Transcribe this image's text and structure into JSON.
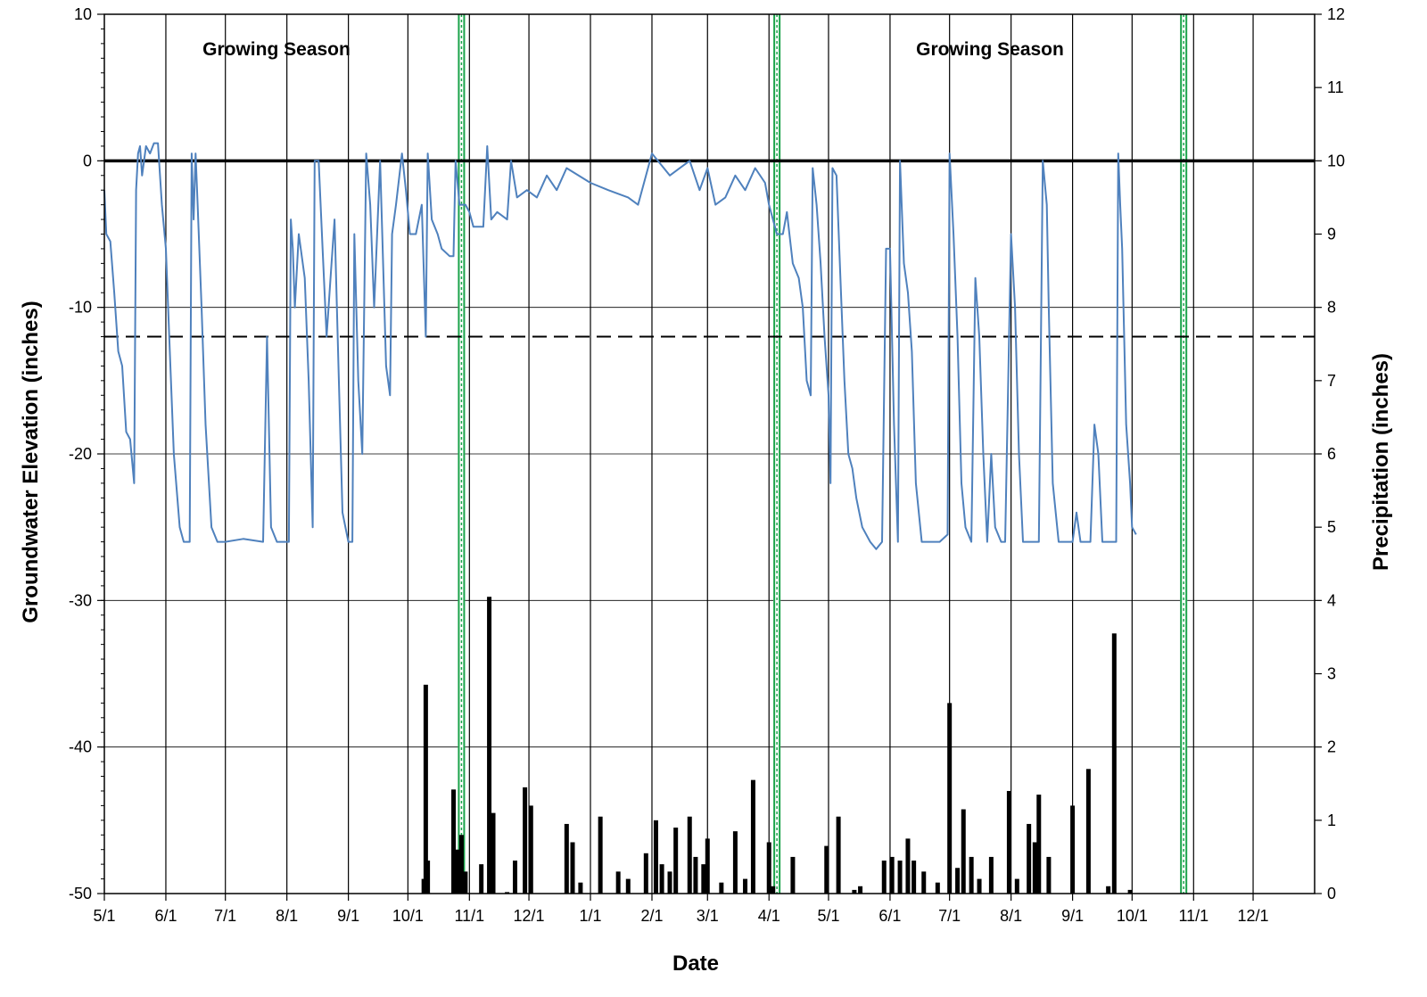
{
  "chart_data": {
    "type": "line",
    "xlabel": "Date",
    "ylabel_left": "Groundwater Elevation (inches)",
    "ylabel_right": "Precipitation (inches)",
    "x_tick_labels": [
      "5/1",
      "6/1",
      "7/1",
      "8/1",
      "9/1",
      "10/1",
      "11/1",
      "12/1",
      "1/1",
      "2/1",
      "3/1",
      "4/1",
      "5/1",
      "6/1",
      "7/1",
      "8/1",
      "9/1",
      "10/1",
      "11/1",
      "12/1"
    ],
    "ylim_left": [
      -50,
      10
    ],
    "yticks_left": [
      10,
      0,
      -10,
      -20,
      -30,
      -40,
      -50
    ],
    "ylim_right": [
      0,
      12
    ],
    "yticks_right": [
      12,
      11,
      10,
      9,
      8,
      7,
      6,
      5,
      4,
      3,
      2,
      1,
      0
    ],
    "grid": true,
    "annotations": [
      "Growing Season",
      "Growing Season"
    ],
    "reference_lines": [
      {
        "style": "solid",
        "y": 0
      },
      {
        "style": "dashed",
        "y": -12
      }
    ],
    "highlight_dates": [
      "10/28",
      "4/5",
      "10/27"
    ],
    "groundwater": {
      "color": "#4f81bd",
      "points": [
        [
          "5/1",
          -2
        ],
        [
          "5/2",
          -5
        ],
        [
          "5/4",
          -5.5
        ],
        [
          "5/6",
          -9
        ],
        [
          "5/8",
          -13
        ],
        [
          "5/10",
          -14
        ],
        [
          "5/12",
          -18.5
        ],
        [
          "5/14",
          -19
        ],
        [
          "5/16",
          -22
        ],
        [
          "5/17",
          -2
        ],
        [
          "5/18",
          0.5
        ],
        [
          "5/19",
          1
        ],
        [
          "5/20",
          -1
        ],
        [
          "5/22",
          1
        ],
        [
          "5/24",
          0.5
        ],
        [
          "5/26",
          1.2
        ],
        [
          "5/28",
          1.2
        ],
        [
          "5/30",
          -3
        ],
        [
          "6/1",
          -6
        ],
        [
          "6/3",
          -13
        ],
        [
          "6/5",
          -20
        ],
        [
          "6/8",
          -25
        ],
        [
          "6/10",
          -26
        ],
        [
          "6/13",
          -26
        ],
        [
          "6/14",
          0.5
        ],
        [
          "6/15",
          -4
        ],
        [
          "6/16",
          0.5
        ],
        [
          "6/17",
          -3
        ],
        [
          "6/19",
          -10
        ],
        [
          "6/21",
          -18
        ],
        [
          "6/24",
          -25
        ],
        [
          "6/27",
          -26
        ],
        [
          "7/1",
          -26
        ],
        [
          "7/10",
          -25.8
        ],
        [
          "7/20",
          -26
        ],
        [
          "7/22",
          -12
        ],
        [
          "7/24",
          -25
        ],
        [
          "7/27",
          -26
        ],
        [
          "8/1",
          -26
        ],
        [
          "8/2",
          -26
        ],
        [
          "8/3",
          -4
        ],
        [
          "8/4",
          -6
        ],
        [
          "8/5",
          -10
        ],
        [
          "8/7",
          -5
        ],
        [
          "8/10",
          -8
        ],
        [
          "8/12",
          -15
        ],
        [
          "8/14",
          -25
        ],
        [
          "8/15",
          0
        ],
        [
          "8/17",
          0
        ],
        [
          "8/19",
          -6
        ],
        [
          "8/21",
          -12
        ],
        [
          "8/23",
          -8
        ],
        [
          "8/25",
          -4
        ],
        [
          "8/27",
          -14
        ],
        [
          "8/29",
          -24
        ],
        [
          "9/1",
          -26
        ],
        [
          "9/3",
          -26
        ],
        [
          "9/4",
          -5
        ],
        [
          "9/6",
          -15
        ],
        [
          "9/8",
          -20
        ],
        [
          "9/10",
          0.5
        ],
        [
          "9/12",
          -3
        ],
        [
          "9/14",
          -10
        ],
        [
          "9/17",
          0
        ],
        [
          "9/20",
          -14
        ],
        [
          "9/22",
          -16
        ],
        [
          "9/23",
          -5
        ],
        [
          "9/25",
          -3
        ],
        [
          "9/28",
          0.5
        ],
        [
          "9/30",
          -2
        ],
        [
          "10/2",
          -5
        ],
        [
          "10/5",
          -5
        ],
        [
          "10/8",
          -3
        ],
        [
          "10/10",
          -12
        ],
        [
          "10/11",
          0.5
        ],
        [
          "10/13",
          -4
        ],
        [
          "10/16",
          -5
        ],
        [
          "10/18",
          -6
        ],
        [
          "10/22",
          -6.5
        ],
        [
          "10/24",
          -6.5
        ],
        [
          "10/25",
          0
        ],
        [
          "10/27",
          -3
        ],
        [
          "10/30",
          -3
        ],
        [
          "11/1",
          -3.5
        ],
        [
          "11/3",
          -4.5
        ],
        [
          "11/8",
          -4.5
        ],
        [
          "11/10",
          1
        ],
        [
          "11/12",
          -4
        ],
        [
          "11/15",
          -3.5
        ],
        [
          "11/20",
          -4
        ],
        [
          "11/22",
          0
        ],
        [
          "11/25",
          -2.5
        ],
        [
          "11/30",
          -2
        ],
        [
          "12/5",
          -2.5
        ],
        [
          "12/10",
          -1
        ],
        [
          "12/15",
          -2
        ],
        [
          "12/20",
          -0.5
        ],
        [
          "1/1",
          -1.5
        ],
        [
          "1/10",
          -2
        ],
        [
          "1/20",
          -2.5
        ],
        [
          "1/25",
          -3
        ],
        [
          "2/1",
          0.5
        ],
        [
          "2/10",
          -1
        ],
        [
          "2/20",
          0
        ],
        [
          "2/25",
          -2
        ],
        [
          "3/1",
          -0.5
        ],
        [
          "3/5",
          -3
        ],
        [
          "3/10",
          -2.5
        ],
        [
          "3/15",
          -1
        ],
        [
          "3/20",
          -2
        ],
        [
          "3/25",
          -0.5
        ],
        [
          "3/30",
          -1.5
        ],
        [
          "4/1",
          -3
        ],
        [
          "4/5",
          -5
        ],
        [
          "4/8",
          -5
        ],
        [
          "4/10",
          -3.5
        ],
        [
          "4/13",
          -7
        ],
        [
          "4/16",
          -8
        ],
        [
          "4/18",
          -10
        ],
        [
          "4/20",
          -15
        ],
        [
          "4/22",
          -16
        ],
        [
          "4/23",
          -0.5
        ],
        [
          "4/25",
          -3
        ],
        [
          "4/27",
          -7
        ],
        [
          "4/29",
          -12
        ],
        [
          "5/1",
          -16
        ],
        [
          "5/2",
          -22
        ],
        [
          "5/3",
          -0.5
        ],
        [
          "5/5",
          -1
        ],
        [
          "5/7",
          -8
        ],
        [
          "5/9",
          -15
        ],
        [
          "5/11",
          -20
        ],
        [
          "5/13",
          -21
        ],
        [
          "5/15",
          -23
        ],
        [
          "5/18",
          -25
        ],
        [
          "5/22",
          -26
        ],
        [
          "5/25",
          -26.5
        ],
        [
          "5/28",
          -26
        ],
        [
          "5/30",
          -6
        ],
        [
          "6/1",
          -6
        ],
        [
          "6/3",
          -18
        ],
        [
          "6/5",
          -26
        ],
        [
          "6/6",
          0
        ],
        [
          "6/8",
          -7
        ],
        [
          "6/10",
          -9
        ],
        [
          "6/12",
          -13
        ],
        [
          "6/14",
          -22
        ],
        [
          "6/17",
          -26
        ],
        [
          "6/20",
          -26
        ],
        [
          "6/22",
          -26
        ],
        [
          "6/26",
          -26
        ],
        [
          "6/30",
          -25.5
        ],
        [
          "7/1",
          0.5
        ],
        [
          "7/3",
          -5
        ],
        [
          "7/5",
          -12
        ],
        [
          "7/7",
          -22
        ],
        [
          "7/9",
          -25
        ],
        [
          "7/12",
          -26
        ],
        [
          "7/14",
          -8
        ],
        [
          "7/16",
          -12
        ],
        [
          "7/18",
          -20
        ],
        [
          "7/20",
          -26
        ],
        [
          "7/22",
          -20
        ],
        [
          "7/24",
          -25
        ],
        [
          "7/27",
          -26
        ],
        [
          "7/29",
          -26
        ],
        [
          "8/1",
          -5
        ],
        [
          "8/3",
          -10
        ],
        [
          "8/5",
          -20
        ],
        [
          "8/7",
          -26
        ],
        [
          "8/10",
          -26
        ],
        [
          "8/15",
          -26
        ],
        [
          "8/17",
          0
        ],
        [
          "8/19",
          -3
        ],
        [
          "8/20",
          -10
        ],
        [
          "8/22",
          -22
        ],
        [
          "8/25",
          -26
        ],
        [
          "8/30",
          -26
        ],
        [
          "9/1",
          -26
        ],
        [
          "9/3",
          -24
        ],
        [
          "9/5",
          -26
        ],
        [
          "9/10",
          -26
        ],
        [
          "9/12",
          -18
        ],
        [
          "9/14",
          -20
        ],
        [
          "9/16",
          -26
        ],
        [
          "9/20",
          -26
        ],
        [
          "9/23",
          -26
        ],
        [
          "9/24",
          0.5
        ],
        [
          "9/25",
          -3
        ],
        [
          "9/26",
          -6
        ],
        [
          "9/28",
          -18
        ],
        [
          "9/30",
          -22
        ],
        [
          "10/1",
          -25
        ],
        [
          "10/3",
          -25.5
        ]
      ]
    },
    "precipitation": {
      "color": "#000000",
      "bars": [
        {
          "x": "10/9",
          "value": 0.2
        },
        {
          "x": "10/10",
          "value": 2.85
        },
        {
          "x": "10/11",
          "value": 0.45
        },
        {
          "x": "10/24",
          "value": 1.42
        },
        {
          "x": "10/26",
          "value": 0.6
        },
        {
          "x": "10/28",
          "value": 0.8
        },
        {
          "x": "10/30",
          "value": 0.3
        },
        {
          "x": "11/7",
          "value": 0.4
        },
        {
          "x": "11/11",
          "value": 4.05
        },
        {
          "x": "11/13",
          "value": 1.1
        },
        {
          "x": "11/20",
          "value": 0.02
        },
        {
          "x": "11/24",
          "value": 0.45
        },
        {
          "x": "11/29",
          "value": 1.45
        },
        {
          "x": "12/2",
          "value": 1.2
        },
        {
          "x": "12/20",
          "value": 0.95
        },
        {
          "x": "12/23",
          "value": 0.7
        },
        {
          "x": "12/27",
          "value": 0.15
        },
        {
          "x": "1/6",
          "value": 1.05
        },
        {
          "x": "1/15",
          "value": 0.3
        },
        {
          "x": "1/20",
          "value": 0.2
        },
        {
          "x": "1/29",
          "value": 0.55
        },
        {
          "x": "2/3",
          "value": 1.0
        },
        {
          "x": "2/6",
          "value": 0.4
        },
        {
          "x": "2/10",
          "value": 0.3
        },
        {
          "x": "2/13",
          "value": 0.9
        },
        {
          "x": "2/20",
          "value": 1.05
        },
        {
          "x": "2/23",
          "value": 0.5
        },
        {
          "x": "2/27",
          "value": 0.4
        },
        {
          "x": "3/1",
          "value": 0.75
        },
        {
          "x": "3/8",
          "value": 0.15
        },
        {
          "x": "3/15",
          "value": 0.85
        },
        {
          "x": "3/20",
          "value": 0.2
        },
        {
          "x": "3/24",
          "value": 1.55
        },
        {
          "x": "4/1",
          "value": 0.7
        },
        {
          "x": "4/3",
          "value": 0.1
        },
        {
          "x": "4/13",
          "value": 0.5
        },
        {
          "x": "4/30",
          "value": 0.65
        },
        {
          "x": "5/6",
          "value": 1.05
        },
        {
          "x": "5/14",
          "value": 0.05
        },
        {
          "x": "5/17",
          "value": 0.1
        },
        {
          "x": "5/29",
          "value": 0.45
        },
        {
          "x": "6/2",
          "value": 0.5
        },
        {
          "x": "6/6",
          "value": 0.45
        },
        {
          "x": "6/10",
          "value": 0.75
        },
        {
          "x": "6/13",
          "value": 0.45
        },
        {
          "x": "6/18",
          "value": 0.3
        },
        {
          "x": "6/25",
          "value": 0.15
        },
        {
          "x": "7/1",
          "value": 2.6
        },
        {
          "x": "7/5",
          "value": 0.35
        },
        {
          "x": "7/8",
          "value": 1.15
        },
        {
          "x": "7/12",
          "value": 0.5
        },
        {
          "x": "7/16",
          "value": 0.2
        },
        {
          "x": "7/22",
          "value": 0.5
        },
        {
          "x": "7/31",
          "value": 1.4
        },
        {
          "x": "8/4",
          "value": 0.2
        },
        {
          "x": "8/10",
          "value": 0.95
        },
        {
          "x": "8/13",
          "value": 0.7
        },
        {
          "x": "8/15",
          "value": 1.35
        },
        {
          "x": "8/20",
          "value": 0.5
        },
        {
          "x": "9/1",
          "value": 1.2
        },
        {
          "x": "9/9",
          "value": 1.7
        },
        {
          "x": "9/19",
          "value": 0.1
        },
        {
          "x": "9/22",
          "value": 3.55
        },
        {
          "x": "9/30",
          "value": 0.05
        }
      ]
    }
  }
}
